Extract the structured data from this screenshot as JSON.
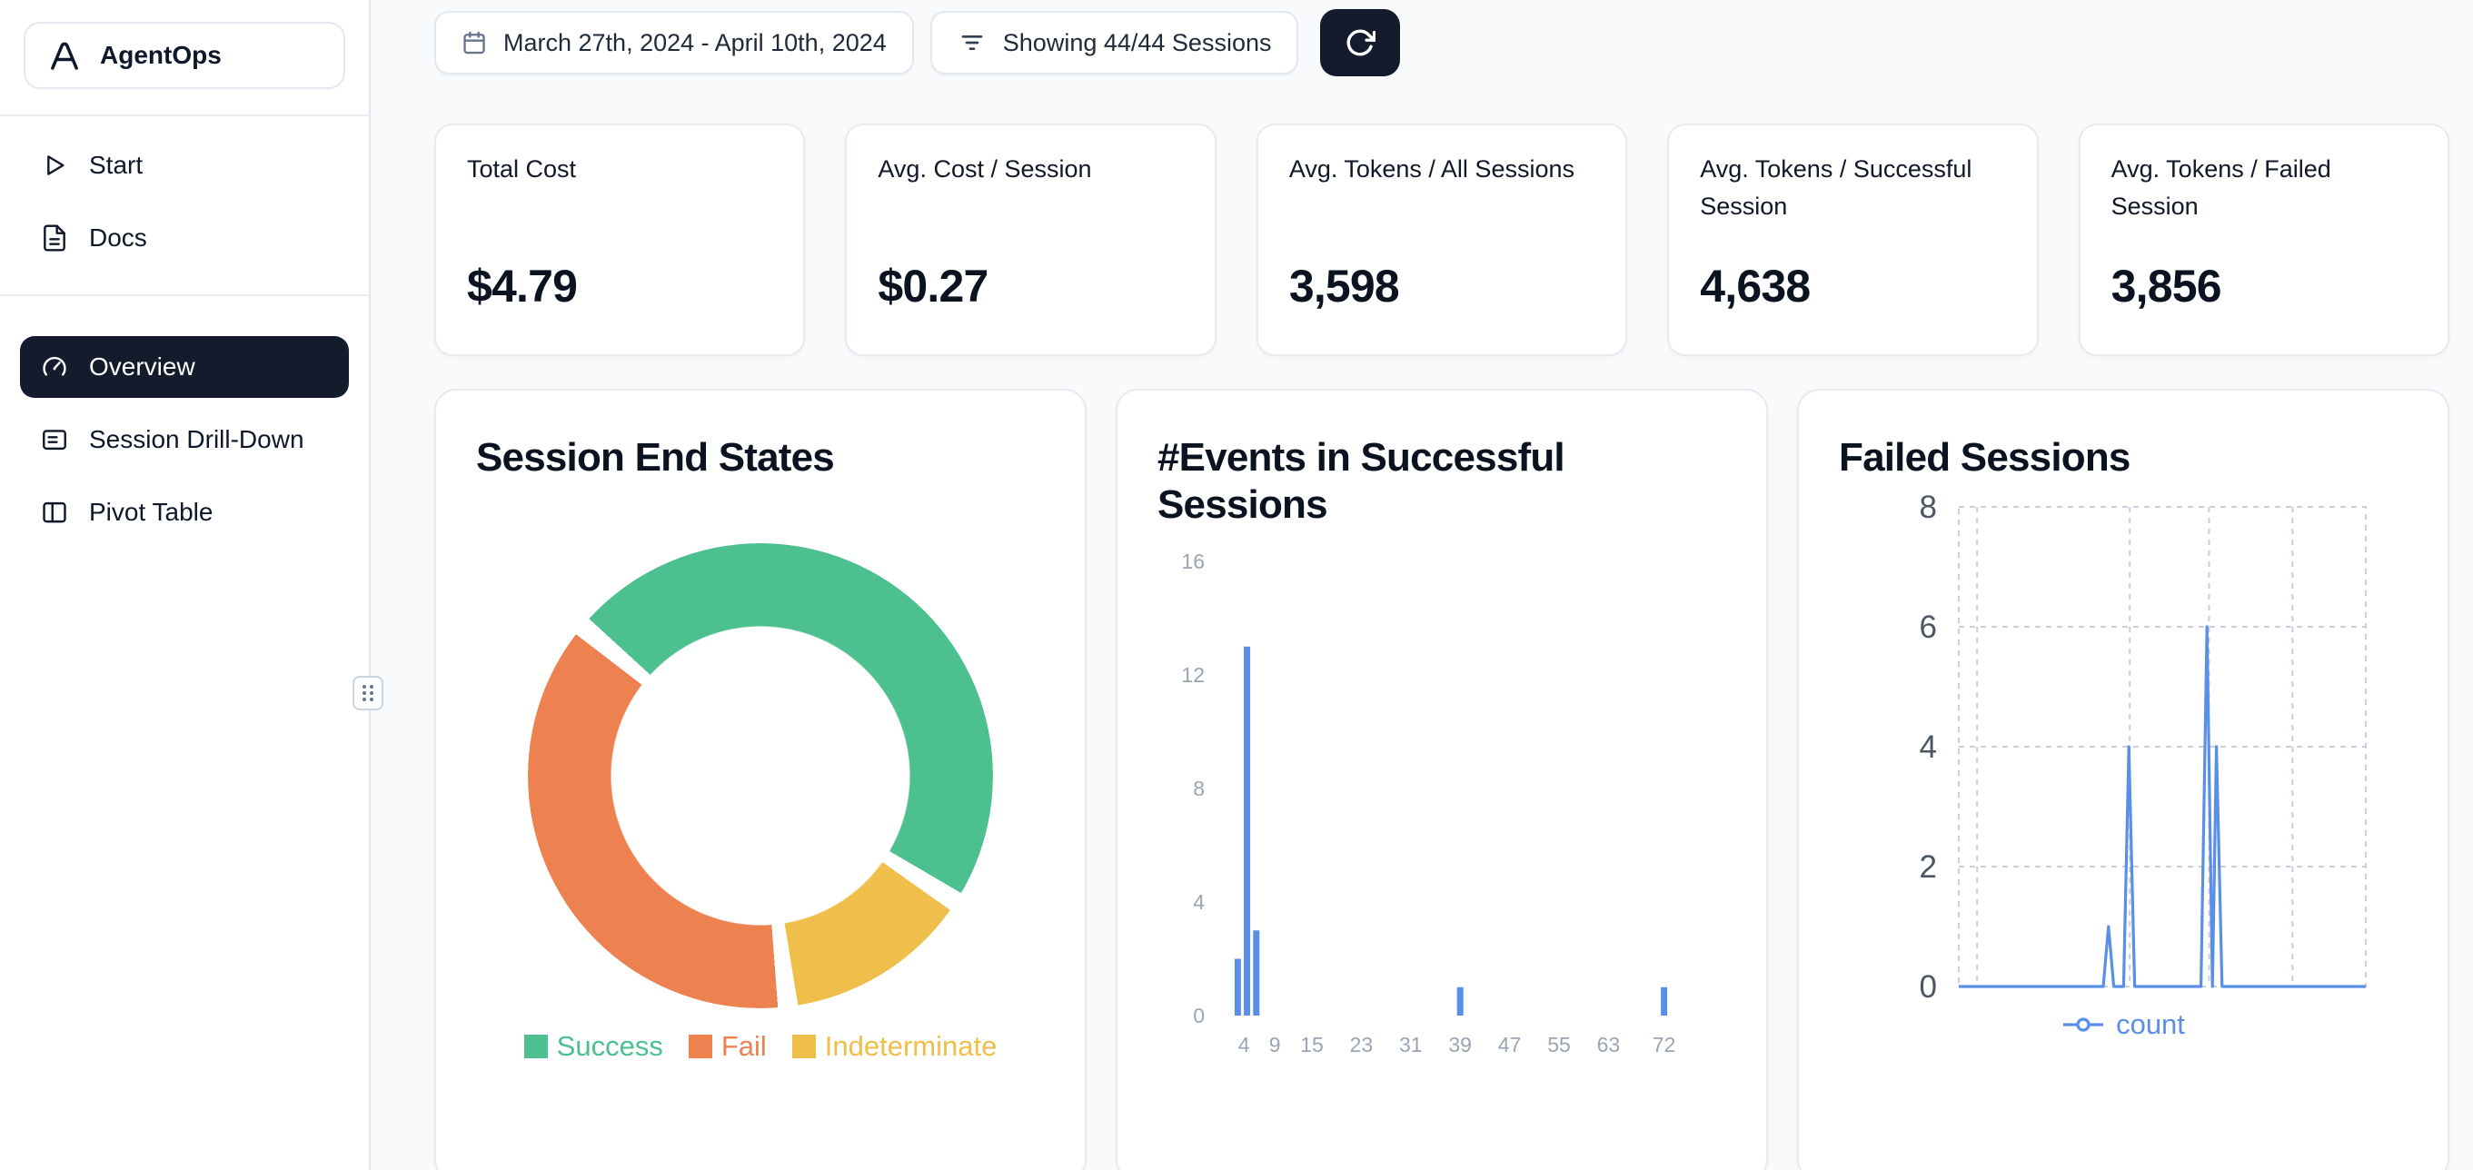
{
  "sidebar": {
    "brand": "AgentOps",
    "logo_icon": "agentops-logo-icon",
    "items": [
      {
        "label": "Start",
        "icon": "play-icon",
        "active": false
      },
      {
        "label": "Docs",
        "icon": "docs-icon",
        "active": false
      },
      {
        "label": "Overview",
        "icon": "gauge-icon",
        "active": true
      },
      {
        "label": "Session Drill-Down",
        "icon": "session-drilldown-icon",
        "active": false
      },
      {
        "label": "Pivot Table",
        "icon": "pivot-table-icon",
        "active": false
      }
    ]
  },
  "toolbar": {
    "date_range": "March 27th, 2024 - April 10th, 2024",
    "date_icon": "calendar-icon",
    "sessions_filter": "Showing 44/44 Sessions",
    "filter_icon": "filter-icon",
    "refresh_icon": "refresh-icon"
  },
  "stats": [
    {
      "title": "Total Cost",
      "value": "$4.79"
    },
    {
      "title": "Avg. Cost / Session",
      "value": "$0.27"
    },
    {
      "title": "Avg. Tokens / All Sessions",
      "value": "3,598"
    },
    {
      "title": "Avg. Tokens / Successful Session",
      "value": "4,638"
    },
    {
      "title": "Avg. Tokens / Failed Session",
      "value": "3,856"
    }
  ],
  "colors": {
    "accent_blue": "#5A8FE8",
    "dark_navy": "#131B2D",
    "success_green": "#4DC08F",
    "fail_orange": "#ED8150",
    "indeterminate_yellow": "#F0BE4B",
    "background": "#F8FAFC",
    "card_border": "#E7EBF0"
  },
  "chart_data": [
    {
      "type": "pie",
      "donut": true,
      "title": "Session End States",
      "slices": [
        {
          "label": "Success",
          "percent": 48,
          "color": "#4DC08F"
        },
        {
          "label": "Fail",
          "percent": 38,
          "color": "#ED8150"
        },
        {
          "label": "Indeterminate",
          "percent": 14,
          "color": "#F0BE4B"
        }
      ],
      "render_order": [
        0,
        2,
        1
      ],
      "rotation_deg": -50,
      "gap_deg": 5,
      "legend_position": "bottom"
    },
    {
      "type": "bar",
      "title": "#Events in Successful Sessions",
      "x_tick_labels": [
        4,
        9,
        15,
        23,
        31,
        39,
        47,
        55,
        63,
        72
      ],
      "y_ticks": [
        0,
        4,
        8,
        12,
        16
      ],
      "ylim": [
        0,
        16
      ],
      "xlim": [
        0,
        80
      ],
      "bars": [
        {
          "x": 3,
          "count": 2
        },
        {
          "x": 4.5,
          "count": 13
        },
        {
          "x": 6,
          "count": 3
        },
        {
          "x": 39,
          "count": 1
        },
        {
          "x": 72,
          "count": 1
        }
      ],
      "color": "#5A8FE8",
      "tick_color": "#9AA5B1",
      "grid": "off"
    },
    {
      "type": "line",
      "title": "Failed Sessions",
      "y_ticks": [
        0,
        2,
        4,
        6,
        8
      ],
      "ylim": [
        0,
        8
      ],
      "series": [
        {
          "name": "count",
          "color": "#5A8FE8",
          "points": [
            [
              0,
              0
            ],
            [
              0.355,
              0
            ],
            [
              0.368,
              1
            ],
            [
              0.381,
              0
            ],
            [
              0.405,
              0
            ],
            [
              0.418,
              4
            ],
            [
              0.432,
              0
            ],
            [
              0.595,
              0
            ],
            [
              0.61,
              6
            ],
            [
              0.623,
              0
            ],
            [
              0.633,
              4
            ],
            [
              0.647,
              0
            ],
            [
              1,
              0
            ]
          ]
        }
      ],
      "x_gridlines": [
        0.045,
        0.42,
        0.615,
        0.82
      ],
      "grid": "dashed",
      "tick_color": "#4B5563",
      "legend_position": "bottom"
    }
  ]
}
